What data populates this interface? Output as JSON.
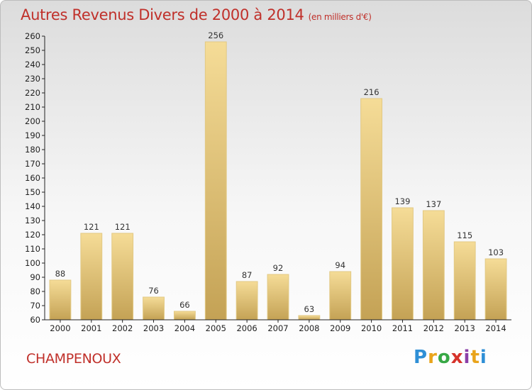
{
  "header": {
    "title": "Autres Revenus Divers de 2000 à 2014",
    "unit": "(en milliers d'€)"
  },
  "footer": {
    "commune": "CHAMPENOUX",
    "logo": {
      "p": "P",
      "r": "r",
      "o": "o",
      "x": "x",
      "i1": "i",
      "t": "t",
      "i2": "i"
    }
  },
  "chart_data": {
    "type": "bar",
    "title": "Autres Revenus Divers de 2000 à 2014",
    "subtitle": "(en milliers d'€)",
    "xlabel": "",
    "ylabel": "",
    "categories": [
      "2000",
      "2001",
      "2002",
      "2003",
      "2004",
      "2005",
      "2006",
      "2007",
      "2008",
      "2009",
      "2010",
      "2011",
      "2012",
      "2013",
      "2014"
    ],
    "values": [
      88,
      121,
      121,
      76,
      66,
      256,
      87,
      92,
      63,
      94,
      216,
      139,
      137,
      115,
      103
    ],
    "ylim": [
      60,
      260
    ],
    "yticks": [
      60,
      70,
      80,
      90,
      100,
      110,
      120,
      130,
      140,
      150,
      160,
      170,
      180,
      190,
      200,
      210,
      220,
      230,
      240,
      250,
      260
    ],
    "grid": false,
    "legend": "none",
    "colors": {
      "bar_top": "#f5dc97",
      "bar_bottom": "#c9a759",
      "bar_edge": "#e2c984",
      "axis": "#222222"
    }
  }
}
